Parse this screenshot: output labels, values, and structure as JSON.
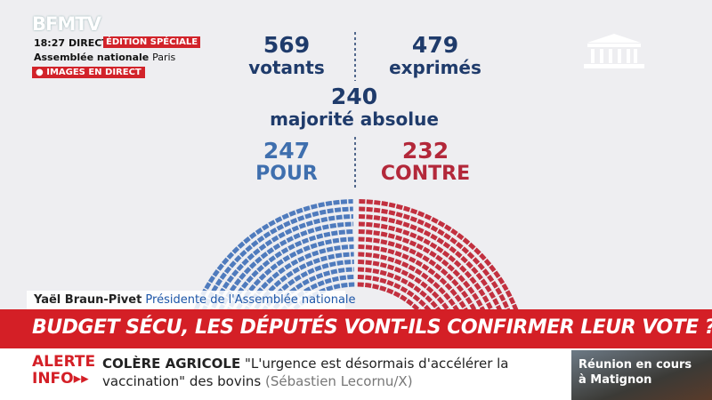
{
  "channel": {
    "logo": "BFMTV",
    "time": "18:27",
    "live": "DIRECT",
    "edition": "ÉDITION SPÉCIALE",
    "location": "Assemblée nationale",
    "city": "Paris",
    "images": "IMAGES EN DIRECT"
  },
  "vote": {
    "voters": {
      "value": 569,
      "label": "votants"
    },
    "cast": {
      "value": 479,
      "label": "exprimés"
    },
    "majority": {
      "value": 240,
      "label": "majorité absolue"
    },
    "for": {
      "value": 247,
      "label": "POUR"
    },
    "against": {
      "value": 232,
      "label": "CONTRE"
    }
  },
  "speaker": {
    "name": "Yaël Braun-Pivet",
    "role": "Présidente de l'Assemblée nationale"
  },
  "headline": "BUDGET SÉCU, LES DÉPUTÉS VONT-ILS CONFIRMER LEUR VOTE ?",
  "ticker": {
    "alert": [
      "ALERTE",
      "INFO"
    ],
    "topic": "COLÈRE AGRICOLE",
    "quote_lines": [
      "\"L'urgence est désormais d'accélérer la",
      "vaccination\" des bovins"
    ],
    "source": "(Sébastien Lecornu/X)",
    "inset": [
      "Réunion en cours",
      "à Matignon"
    ]
  }
}
